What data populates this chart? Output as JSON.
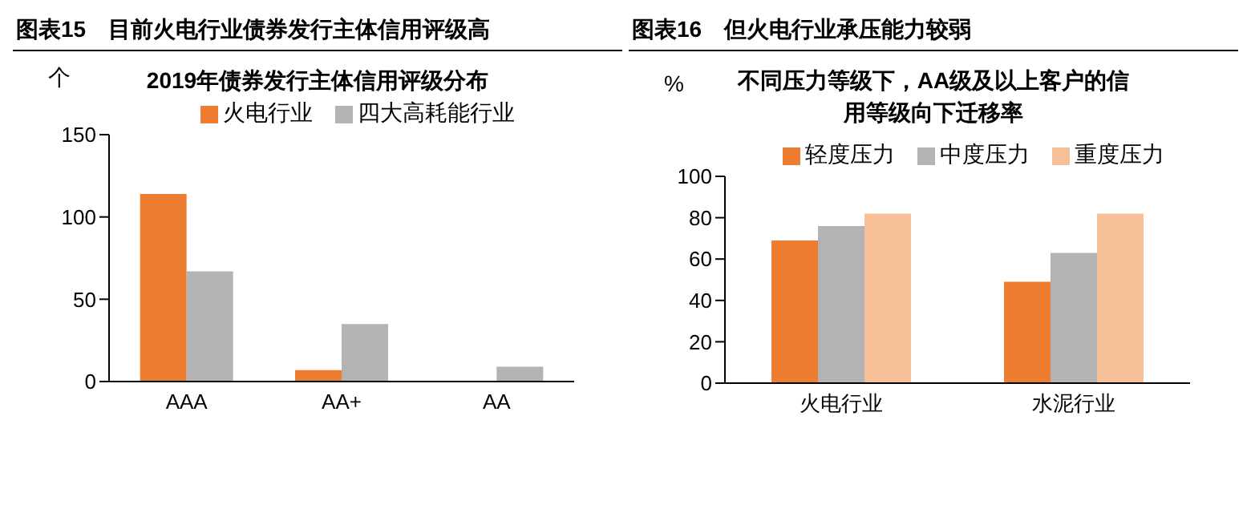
{
  "chart_data": [
    {
      "type": "bar",
      "title": "图表15　目前火电行业债券发行主体信用评级高",
      "subtitle": "2019年债券发行主体信用评级分布",
      "ylabel": "个",
      "categories": [
        "AAA",
        "AA+",
        "AA"
      ],
      "series": [
        {
          "name": "火电行业",
          "color": "#ed7d31",
          "values": [
            114,
            7,
            0
          ]
        },
        {
          "name": "四大高耗能行业",
          "color": "#b3b3b3",
          "values": [
            67,
            35,
            9
          ]
        }
      ],
      "ylim": [
        0,
        150
      ],
      "yticks": [
        0,
        50,
        100,
        150
      ],
      "grid": false,
      "legend": "top"
    },
    {
      "type": "bar",
      "title": "图表16　但火电行业承压能力较弱",
      "subtitle": "不同压力等级下，AA级及以上客户的信用等级向下迁移率",
      "ylabel": "%",
      "categories": [
        "火电行业",
        "水泥行业"
      ],
      "series": [
        {
          "name": "轻度压力",
          "color": "#ed7d31",
          "values": [
            69,
            49
          ]
        },
        {
          "name": "中度压力",
          "color": "#b3b3b3",
          "values": [
            76,
            63
          ]
        },
        {
          "name": "重度压力",
          "color": "#f8c098",
          "values": [
            82,
            82
          ]
        }
      ],
      "ylim": [
        0,
        100
      ],
      "yticks": [
        0,
        20,
        40,
        60,
        80,
        100
      ],
      "grid": false,
      "legend": "top"
    }
  ]
}
